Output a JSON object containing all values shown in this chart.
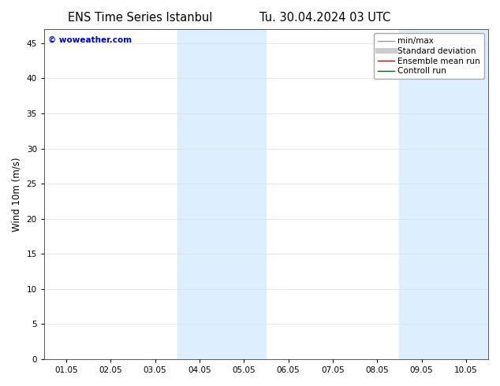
{
  "title_left": "ENS Time Series Istanbul",
  "title_right": "Tu. 30.04.2024 03 UTC",
  "ylabel": "Wind 10m (m/s)",
  "xlim_labels": [
    "01.05",
    "02.05",
    "03.05",
    "04.05",
    "05.05",
    "06.05",
    "07.05",
    "08.05",
    "09.05",
    "10.05"
  ],
  "xlim": [
    0,
    10
  ],
  "ylim": [
    0,
    47
  ],
  "yticks": [
    0,
    5,
    10,
    15,
    20,
    25,
    30,
    35,
    40,
    45
  ],
  "shaded_bands": [
    {
      "x_start": 3.0,
      "x_end": 4.0,
      "color": "#ddeeff"
    },
    {
      "x_start": 4.0,
      "x_end": 5.0,
      "color": "#ddeeff"
    },
    {
      "x_start": 8.0,
      "x_end": 9.0,
      "color": "#ddeeff"
    },
    {
      "x_start": 9.0,
      "x_end": 10.0,
      "color": "#ddeeff"
    }
  ],
  "watermark_text": "© woweather.com",
  "watermark_color": "#0000cc",
  "background_color": "#ffffff",
  "plot_bg_color": "#ffffff",
  "legend_entries": [
    {
      "label": "min/max",
      "color": "#999999",
      "lw": 1.0
    },
    {
      "label": "Standard deviation",
      "color": "#cccccc",
      "lw": 5
    },
    {
      "label": "Ensemble mean run",
      "color": "#cc0000",
      "lw": 1.0
    },
    {
      "label": "Controll run",
      "color": "#006600",
      "lw": 1.0
    }
  ],
  "title_fontsize": 10.5,
  "tick_fontsize": 7.5,
  "ylabel_fontsize": 8.5,
  "legend_fontsize": 7.5
}
